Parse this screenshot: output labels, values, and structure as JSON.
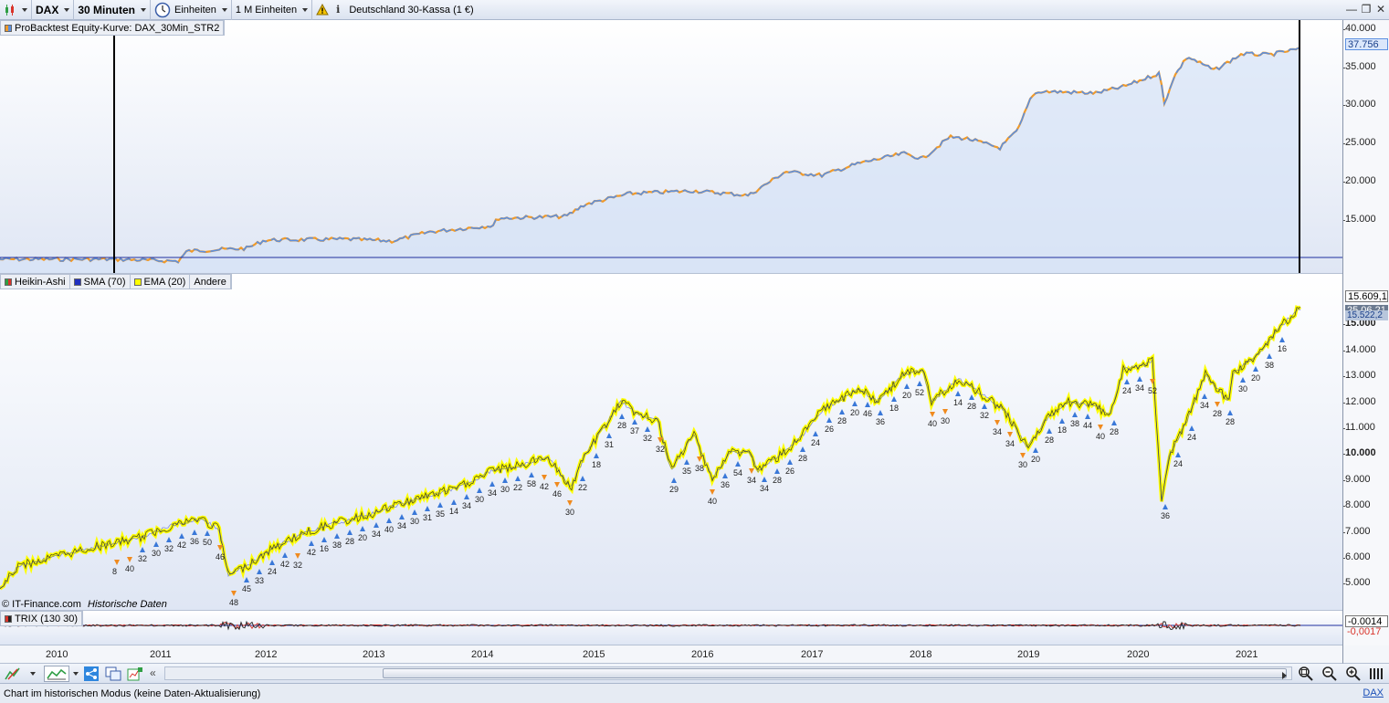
{
  "toolbar": {
    "symbol": "DAX",
    "timeframe": "30 Minuten",
    "units": "Einheiten",
    "units_count": "1 M Einheiten",
    "instrument": "Deutschland 30-Kassa (1 €)"
  },
  "equity_pane": {
    "legend": "ProBacktest Equity-Kurve: DAX_30Min_STR2",
    "ticks": [
      "40.000",
      "35.000",
      "30.000",
      "25.000",
      "20.000",
      "15.000"
    ],
    "current_value": "37.756",
    "colors": {
      "line": "#5b8fe0",
      "line_alt": "#f09a2a",
      "fill": "#d6e2f6"
    }
  },
  "price_pane": {
    "legend": [
      {
        "label": "Heikin-Ashi",
        "color": "#2f9e44"
      },
      {
        "label": "SMA (70)",
        "color": "#1f2fbf"
      },
      {
        "label": "EMA (20)",
        "color": "#ffff00"
      },
      {
        "label": "Andere",
        "color": ""
      }
    ],
    "ticks": [
      "15.000",
      "14.000",
      "13.000",
      "12.000",
      "11.000",
      "10.000",
      "9.000",
      "8.000",
      "7.000",
      "6.000",
      "5.000"
    ],
    "current_value": "15.609,1",
    "tag_date": "25.06.21",
    "tag_value": "15.522,2",
    "copyright": "© IT-Finance.com",
    "copyright_note": "Historische Daten"
  },
  "trix_pane": {
    "legend": "TRIX (130 30)",
    "value_1": "-0.0014",
    "value_2": "-0,0017"
  },
  "x_axis": {
    "labels": [
      "2010",
      "2011",
      "2012",
      "2013",
      "2014",
      "2015",
      "2016",
      "2017",
      "2018",
      "2019",
      "2020",
      "2021"
    ]
  },
  "signals": [
    {
      "t": "8",
      "d": "down"
    },
    {
      "t": "40",
      "d": "down"
    },
    {
      "t": "32",
      "d": "up"
    },
    {
      "t": "30",
      "d": "up"
    },
    {
      "t": "32",
      "d": "up"
    },
    {
      "t": "42",
      "d": "up"
    },
    {
      "t": "36",
      "d": "up"
    },
    {
      "t": "50",
      "d": "up"
    },
    {
      "t": "46",
      "d": "down"
    },
    {
      "t": "48",
      "d": "down"
    },
    {
      "t": "45",
      "d": "up"
    },
    {
      "t": "33",
      "d": "up"
    },
    {
      "t": "24",
      "d": "up"
    },
    {
      "t": "42",
      "d": "up"
    },
    {
      "t": "32",
      "d": "down"
    },
    {
      "t": "42",
      "d": "up"
    },
    {
      "t": "16",
      "d": "up"
    },
    {
      "t": "38",
      "d": "up"
    },
    {
      "t": "28",
      "d": "up"
    },
    {
      "t": "20",
      "d": "up"
    },
    {
      "t": "34",
      "d": "up"
    },
    {
      "t": "40",
      "d": "up"
    },
    {
      "t": "34",
      "d": "up"
    },
    {
      "t": "30",
      "d": "up"
    },
    {
      "t": "31",
      "d": "up"
    },
    {
      "t": "35",
      "d": "up"
    },
    {
      "t": "14",
      "d": "up"
    },
    {
      "t": "34",
      "d": "up"
    },
    {
      "t": "30",
      "d": "up"
    },
    {
      "t": "34",
      "d": "up"
    },
    {
      "t": "30",
      "d": "up"
    },
    {
      "t": "22",
      "d": "up"
    },
    {
      "t": "58",
      "d": "up"
    },
    {
      "t": "42",
      "d": "down"
    },
    {
      "t": "46",
      "d": "down"
    },
    {
      "t": "30",
      "d": "down"
    },
    {
      "t": "22",
      "d": "up"
    },
    {
      "t": "18",
      "d": "up"
    },
    {
      "t": "31",
      "d": "up"
    },
    {
      "t": "28",
      "d": "up"
    },
    {
      "t": "37",
      "d": "up"
    },
    {
      "t": "32",
      "d": "up"
    },
    {
      "t": "32",
      "d": "down"
    },
    {
      "t": "29",
      "d": "up"
    },
    {
      "t": "35",
      "d": "up"
    },
    {
      "t": "38",
      "d": "down"
    },
    {
      "t": "40",
      "d": "down"
    },
    {
      "t": "36",
      "d": "up"
    },
    {
      "t": "54",
      "d": "up"
    },
    {
      "t": "34",
      "d": "down"
    },
    {
      "t": "34",
      "d": "up"
    },
    {
      "t": "28",
      "d": "up"
    },
    {
      "t": "26",
      "d": "up"
    },
    {
      "t": "28",
      "d": "up"
    },
    {
      "t": "24",
      "d": "up"
    },
    {
      "t": "26",
      "d": "up"
    },
    {
      "t": "28",
      "d": "up"
    },
    {
      "t": "20",
      "d": "up"
    },
    {
      "t": "46",
      "d": "up"
    },
    {
      "t": "36",
      "d": "up"
    },
    {
      "t": "18",
      "d": "up"
    },
    {
      "t": "20",
      "d": "up"
    },
    {
      "t": "52",
      "d": "up"
    },
    {
      "t": "40",
      "d": "down"
    },
    {
      "t": "30",
      "d": "down"
    },
    {
      "t": "14",
      "d": "up"
    },
    {
      "t": "28",
      "d": "up"
    },
    {
      "t": "32",
      "d": "up"
    },
    {
      "t": "34",
      "d": "down"
    },
    {
      "t": "34",
      "d": "down"
    },
    {
      "t": "30",
      "d": "down"
    },
    {
      "t": "20",
      "d": "up"
    },
    {
      "t": "28",
      "d": "up"
    },
    {
      "t": "18",
      "d": "up"
    },
    {
      "t": "38",
      "d": "up"
    },
    {
      "t": "44",
      "d": "up"
    },
    {
      "t": "40",
      "d": "down"
    },
    {
      "t": "28",
      "d": "up"
    },
    {
      "t": "24",
      "d": "up"
    },
    {
      "t": "34",
      "d": "up"
    },
    {
      "t": "52",
      "d": "down"
    },
    {
      "t": "36",
      "d": "up"
    },
    {
      "t": "24",
      "d": "up"
    },
    {
      "t": "24",
      "d": "up"
    },
    {
      "t": "34",
      "d": "up"
    },
    {
      "t": "28",
      "d": "down"
    },
    {
      "t": "28",
      "d": "up"
    },
    {
      "t": "30",
      "d": "up"
    },
    {
      "t": "20",
      "d": "up"
    },
    {
      "t": "38",
      "d": "up"
    },
    {
      "t": "16",
      "d": "up"
    }
  ],
  "status": {
    "text": "Chart im historischen Modus (keine Daten-Aktualisierung)",
    "link": "DAX"
  }
}
